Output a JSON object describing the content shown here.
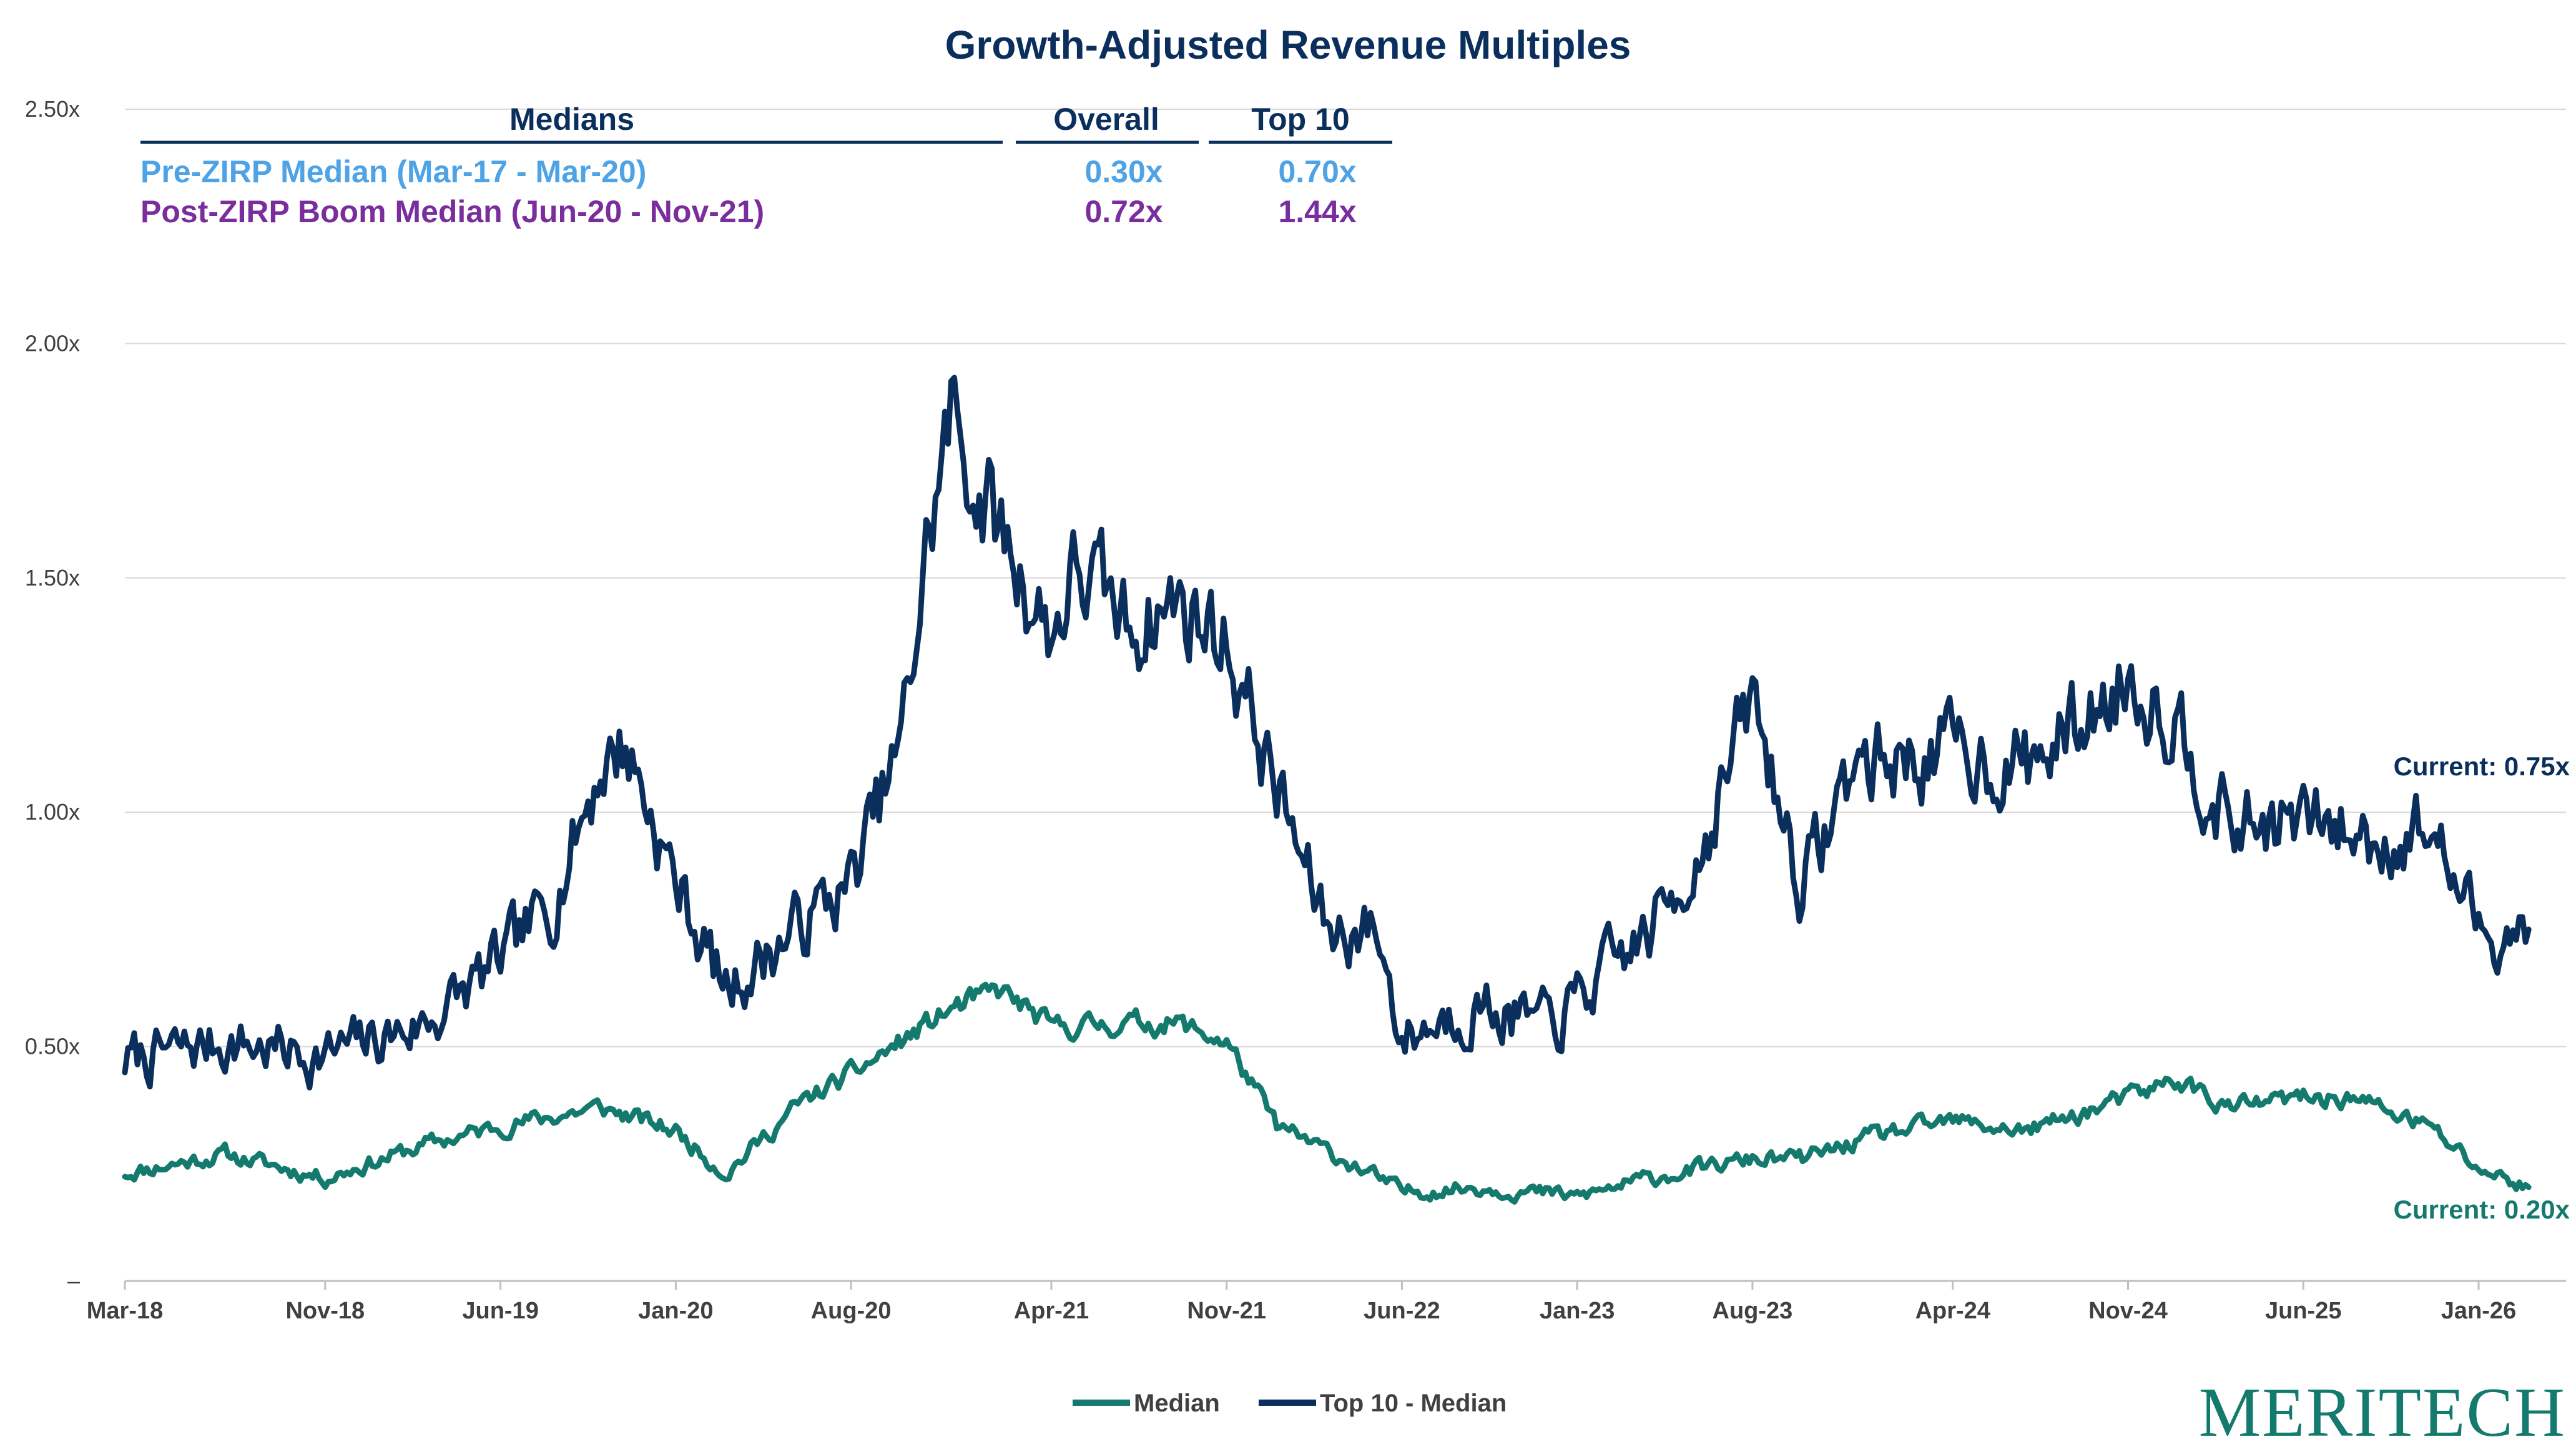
{
  "chart_data": {
    "type": "line",
    "title": "Growth-Adjusted Revenue Multiples",
    "y_ticks": [
      "–",
      "0.50x",
      "1.00x",
      "1.50x",
      "2.00x",
      "2.50x"
    ],
    "ylim": [
      0,
      2.5
    ],
    "x_ticks": [
      "Mar-18",
      "Nov-18",
      "Jun-19",
      "Jan-20",
      "Aug-20",
      "Apr-21",
      "Nov-21",
      "Jun-22",
      "Jan-23",
      "Aug-23",
      "Apr-24",
      "Nov-24",
      "Jun-25",
      "Jan-26"
    ],
    "grid": true,
    "legend_position": "bottom",
    "series": [
      {
        "name": "Median",
        "color": "#157a6e",
        "x": [
          "Mar-18",
          "Jul-18",
          "Nov-18",
          "Mar-19",
          "Jun-19",
          "Oct-19",
          "Jan-20",
          "Mar-20",
          "Jun-20",
          "Aug-20",
          "Oct-20",
          "Dec-20",
          "Feb-21",
          "Apr-21",
          "Jul-21",
          "Sep-21",
          "Nov-21",
          "Jan-22",
          "Apr-22",
          "Jun-22",
          "Sep-22",
          "Jan-23",
          "Apr-23",
          "Aug-23",
          "Oct-23",
          "Jan-24",
          "Apr-24",
          "Jul-24",
          "Nov-24",
          "Jan-25",
          "Mar-25",
          "Jun-25",
          "Aug-25",
          "Nov-25",
          "Jan-26",
          "Mar-26"
        ],
        "values": [
          0.23,
          0.27,
          0.22,
          0.29,
          0.33,
          0.37,
          0.32,
          0.23,
          0.38,
          0.44,
          0.51,
          0.58,
          0.62,
          0.54,
          0.55,
          0.55,
          0.51,
          0.33,
          0.25,
          0.19,
          0.2,
          0.18,
          0.22,
          0.26,
          0.26,
          0.31,
          0.34,
          0.32,
          0.39,
          0.43,
          0.37,
          0.39,
          0.39,
          0.33,
          0.24,
          0.2
        ]
      },
      {
        "name": "Top 10 - Median",
        "color": "#0b2f5c",
        "x": [
          "Mar-18",
          "Jul-18",
          "Nov-18",
          "Mar-19",
          "Jun-19",
          "Aug-19",
          "Oct-19",
          "Nov-19",
          "Jan-20",
          "Mar-20",
          "Jun-20",
          "Aug-20",
          "Oct-20",
          "Nov-20",
          "Dec-20",
          "Jan-21",
          "Apr-21",
          "May-21",
          "Jul-21",
          "Sep-21",
          "Nov-21",
          "Jan-22",
          "Mar-22",
          "May-22",
          "Jun-22",
          "Sep-22",
          "Dec-22",
          "Jan-23",
          "Apr-23",
          "Jun-23",
          "Aug-23",
          "Oct-23",
          "Dec-23",
          "Apr-24",
          "Jul-24",
          "Oct-24",
          "Nov-24",
          "Jan-25",
          "Mar-25",
          "Jun-25",
          "Sep-25",
          "Nov-25",
          "Jan-26",
          "Mar-26"
        ],
        "values": [
          0.47,
          0.51,
          0.48,
          0.55,
          0.68,
          0.8,
          1.1,
          1.15,
          0.85,
          0.62,
          0.76,
          0.85,
          1.14,
          1.55,
          1.85,
          1.7,
          1.38,
          1.52,
          1.4,
          1.45,
          1.37,
          1.05,
          0.75,
          0.75,
          0.52,
          0.59,
          0.54,
          0.6,
          0.75,
          0.93,
          1.24,
          0.84,
          1.1,
          1.13,
          1.1,
          1.23,
          1.3,
          1.2,
          0.97,
          0.98,
          0.94,
          0.97,
          0.75,
          0.75
        ]
      }
    ],
    "annotations": {
      "current_top10": "Current: 0.75x",
      "current_median": "Current: 0.20x"
    }
  },
  "medians_table": {
    "header": {
      "label": "Medians",
      "overall": "Overall",
      "top10": "Top 10"
    },
    "rows": [
      {
        "label": "Pre-ZIRP Median (Mar-17 - Mar-20)",
        "overall": "0.30x",
        "top10": "0.70x",
        "color": "#4da3e6"
      },
      {
        "label": "Post-ZIRP Boom Median (Jun-20 - Nov-21)",
        "overall": "0.72x",
        "top10": "1.44x",
        "color": "#7a2e9e"
      }
    ]
  },
  "legend": {
    "median_label": "Median",
    "top10_label": "Top 10 - Median"
  },
  "logo": {
    "text": "MERITECH"
  }
}
